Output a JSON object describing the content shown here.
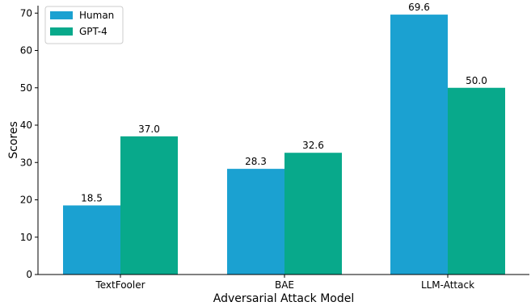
{
  "chart_data": {
    "type": "bar",
    "title": "",
    "xlabel": "Adversarial Attack Model",
    "ylabel": "Scores",
    "categories": [
      "TextFooler",
      "BAE",
      "LLM-Attack"
    ],
    "series": [
      {
        "name": "Human",
        "color": "#1ba1d1",
        "values": [
          18.5,
          28.3,
          69.6
        ]
      },
      {
        "name": "GPT-4",
        "color": "#08a98b",
        "values": [
          37.0,
          32.6,
          50.0
        ]
      }
    ],
    "ylim": [
      0,
      72
    ],
    "yticks": [
      0,
      10,
      20,
      30,
      40,
      50,
      60,
      70
    ],
    "data_labels": {
      "Human": [
        "18.5",
        "28.3",
        "69.6"
      ],
      "GPT-4": [
        "37.0",
        "32.6",
        "50.0"
      ]
    },
    "grid": false,
    "legend_position": "top-left"
  }
}
